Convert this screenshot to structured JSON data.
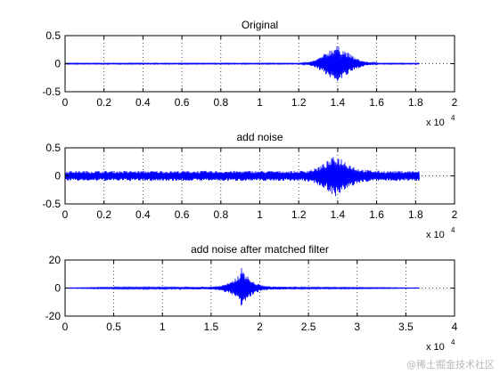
{
  "chart_data": [
    {
      "type": "line",
      "title": "Original",
      "xlim": [
        0,
        20000
      ],
      "ylim": [
        -0.5,
        0.5
      ],
      "xticks": [
        0,
        2000,
        4000,
        6000,
        8000,
        10000,
        12000,
        14000,
        16000,
        18000,
        20000
      ],
      "xtick_labels": [
        "0",
        "0.2",
        "0.4",
        "0.6",
        "0.8",
        "1",
        "1.2",
        "1.4",
        "1.6",
        "1.8",
        "2"
      ],
      "yticks": [
        -0.5,
        0,
        0.5
      ],
      "ytick_labels": [
        "-0.5",
        "0",
        "0.5"
      ],
      "x_exponent_label": "x 10",
      "x_exponent_power": "4",
      "grid": true,
      "color": "#0000ff",
      "series": [
        {
          "x": [
            0,
            12000,
            12400,
            12800,
            13200,
            13600,
            13900,
            14200,
            14600,
            15000,
            15400,
            15800,
            16200,
            18200
          ],
          "envelope": [
            0.01,
            0.01,
            0.02,
            0.06,
            0.14,
            0.26,
            0.33,
            0.28,
            0.18,
            0.09,
            0.04,
            0.02,
            0.01,
            0.01
          ]
        }
      ]
    },
    {
      "type": "line",
      "title": "add noise",
      "xlim": [
        0,
        20000
      ],
      "ylim": [
        -0.5,
        0.5
      ],
      "xticks": [
        0,
        2000,
        4000,
        6000,
        8000,
        10000,
        12000,
        14000,
        16000,
        18000,
        20000
      ],
      "xtick_labels": [
        "0",
        "0.2",
        "0.4",
        "0.6",
        "0.8",
        "1",
        "1.2",
        "1.4",
        "1.6",
        "1.8",
        "2"
      ],
      "yticks": [
        -0.5,
        0,
        0.5
      ],
      "ytick_labels": [
        "-0.5",
        "0",
        "0.5"
      ],
      "x_exponent_label": "x 10",
      "x_exponent_power": "4",
      "grid": true,
      "color": "#0000ff",
      "series": [
        {
          "x": [
            0,
            12000,
            12400,
            12800,
            13200,
            13600,
            13900,
            14200,
            14600,
            15000,
            15400,
            15800,
            16200,
            18200
          ],
          "envelope": [
            0.09,
            0.09,
            0.1,
            0.13,
            0.2,
            0.3,
            0.37,
            0.32,
            0.22,
            0.14,
            0.11,
            0.1,
            0.09,
            0.09
          ]
        }
      ]
    },
    {
      "type": "line",
      "title": "add noise after matched filter",
      "xlim": [
        0,
        40000
      ],
      "ylim": [
        -20,
        20
      ],
      "xticks": [
        0,
        5000,
        10000,
        15000,
        20000,
        25000,
        30000,
        35000,
        40000
      ],
      "xtick_labels": [
        "0",
        "0.5",
        "1",
        "1.5",
        "2",
        "2.5",
        "3",
        "3.5",
        "4"
      ],
      "yticks": [
        -20,
        0,
        20
      ],
      "ytick_labels": [
        "-20",
        "0",
        "20"
      ],
      "x_exponent_label": "x 10",
      "x_exponent_power": "4",
      "grid": true,
      "color": "#0000ff",
      "series": [
        {
          "x": [
            0,
            5000,
            10000,
            15000,
            16000,
            17000,
            17600,
            18000,
            18200,
            18600,
            19200,
            20000,
            21000,
            25000,
            30000,
            36400
          ],
          "envelope": [
            0.2,
            0.6,
            0.7,
            1.0,
            1.8,
            4.0,
            8.0,
            12.0,
            16.0,
            10.0,
            5.0,
            2.5,
            1.2,
            0.6,
            0.5,
            0.2
          ]
        }
      ]
    }
  ],
  "watermark": "@稀土掘金技术社区"
}
